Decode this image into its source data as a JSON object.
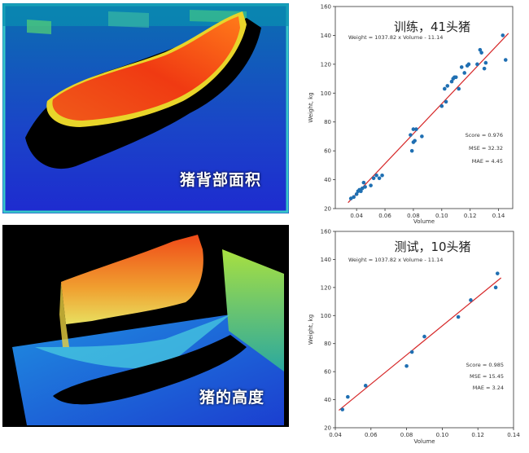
{
  "images": [
    {
      "label": "猪背部面积"
    },
    {
      "label": "猪的高度"
    }
  ],
  "colors": {
    "point": "#1f6fb2",
    "fit_line": "#d62728",
    "axis": "#333333"
  },
  "chart_data": [
    {
      "type": "scatter",
      "title": "训练，41头猪",
      "equation": "Weight = 1037.82 x Volume - 11.14",
      "xlabel": "Volume",
      "ylabel": "Weight, kg",
      "xlim": [
        0.025,
        0.15
      ],
      "ylim": [
        20,
        160
      ],
      "xticks": [
        "0.04",
        "0.06",
        "0.08",
        "0.10",
        "0.12",
        "0.14"
      ],
      "yticks": [
        "20",
        "40",
        "60",
        "80",
        "100",
        "120",
        "140",
        "160"
      ],
      "fit": {
        "slope": 1037.82,
        "intercept": -11.14
      },
      "stats": [
        "Score = 0.976",
        "MSE = 32.32",
        "MAE = 4.45"
      ],
      "x": [
        0.036,
        0.038,
        0.04,
        0.041,
        0.042,
        0.043,
        0.044,
        0.045,
        0.046,
        0.05,
        0.052,
        0.054,
        0.056,
        0.058,
        0.078,
        0.079,
        0.08,
        0.08,
        0.081,
        0.082,
        0.086,
        0.1,
        0.102,
        0.103,
        0.104,
        0.107,
        0.108,
        0.109,
        0.11,
        0.112,
        0.114,
        0.116,
        0.118,
        0.119,
        0.125,
        0.127,
        0.128,
        0.13,
        0.131,
        0.143,
        0.145
      ],
      "y": [
        27,
        28,
        30,
        32,
        33,
        32,
        34,
        38,
        35,
        36,
        41,
        43,
        41,
        43,
        71,
        60,
        66,
        75,
        67,
        75,
        70,
        91,
        103,
        94,
        105,
        108,
        110,
        111,
        111,
        103,
        118,
        114,
        119,
        120,
        120,
        130,
        128,
        117,
        121,
        140,
        123
      ]
    },
    {
      "type": "scatter",
      "title": "测试，10头猪",
      "equation": "Weight = 1037.82 x Volume - 11.14",
      "xlabel": "Volume",
      "ylabel": "Weight, kg",
      "xlim": [
        0.04,
        0.14
      ],
      "ylim": [
        20,
        160
      ],
      "xticks": [
        "0.04",
        "0.06",
        "0.08",
        "0.10",
        "0.12",
        "0.14"
      ],
      "yticks": [
        "20",
        "40",
        "60",
        "80",
        "100",
        "120",
        "140",
        "160"
      ],
      "fit": {
        "slope": 1037.82,
        "intercept": -11.14
      },
      "stats": [
        "Score = 0.985",
        "MSE = 15.45",
        "MAE = 3.24"
      ],
      "x": [
        0.044,
        0.047,
        0.057,
        0.08,
        0.083,
        0.09,
        0.109,
        0.116,
        0.13,
        0.131
      ],
      "y": [
        33,
        42,
        50,
        64,
        74,
        85,
        99,
        111,
        120,
        130
      ]
    }
  ]
}
